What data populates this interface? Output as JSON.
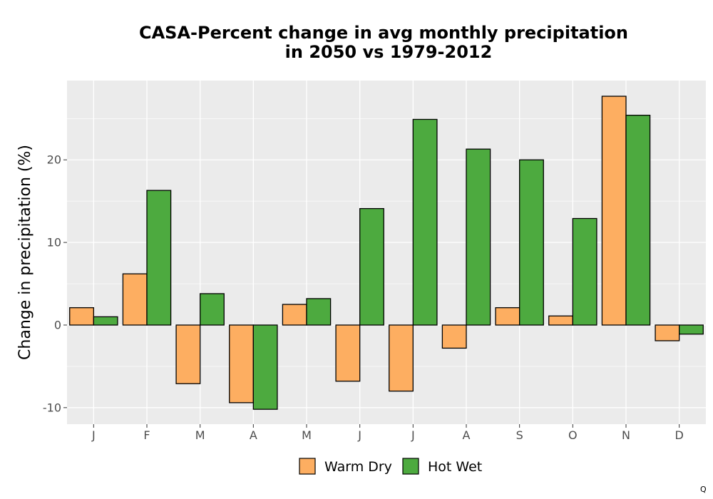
{
  "chart_data": {
    "type": "bar",
    "title_lines": [
      "CASA-Percent change in avg monthly precipitation",
      "in 2050 vs 1979-2012"
    ],
    "xlabel": "",
    "ylabel": "Change in precipitation (%)",
    "categories": [
      "J",
      "F",
      "M",
      "A",
      "M",
      "J",
      "J",
      "A",
      "S",
      "O",
      "N",
      "D"
    ],
    "yticks": [
      -10,
      0,
      10,
      20
    ],
    "ylim": [
      -12,
      29.6
    ],
    "grid": true,
    "legend_position": "bottom",
    "series": [
      {
        "name": "Warm Dry",
        "color": "#fdae61",
        "values": [
          2.1,
          6.2,
          -7.1,
          -9.4,
          2.5,
          -6.8,
          -8.0,
          -2.8,
          2.1,
          1.1,
          27.7,
          -1.9
        ]
      },
      {
        "name": "Hot Wet",
        "color": "#4daa3f",
        "values": [
          1.0,
          16.3,
          3.8,
          -10.2,
          3.2,
          14.1,
          24.9,
          21.3,
          20.0,
          12.9,
          25.4,
          -1.1
        ]
      }
    ]
  },
  "corner_mark": "Q"
}
